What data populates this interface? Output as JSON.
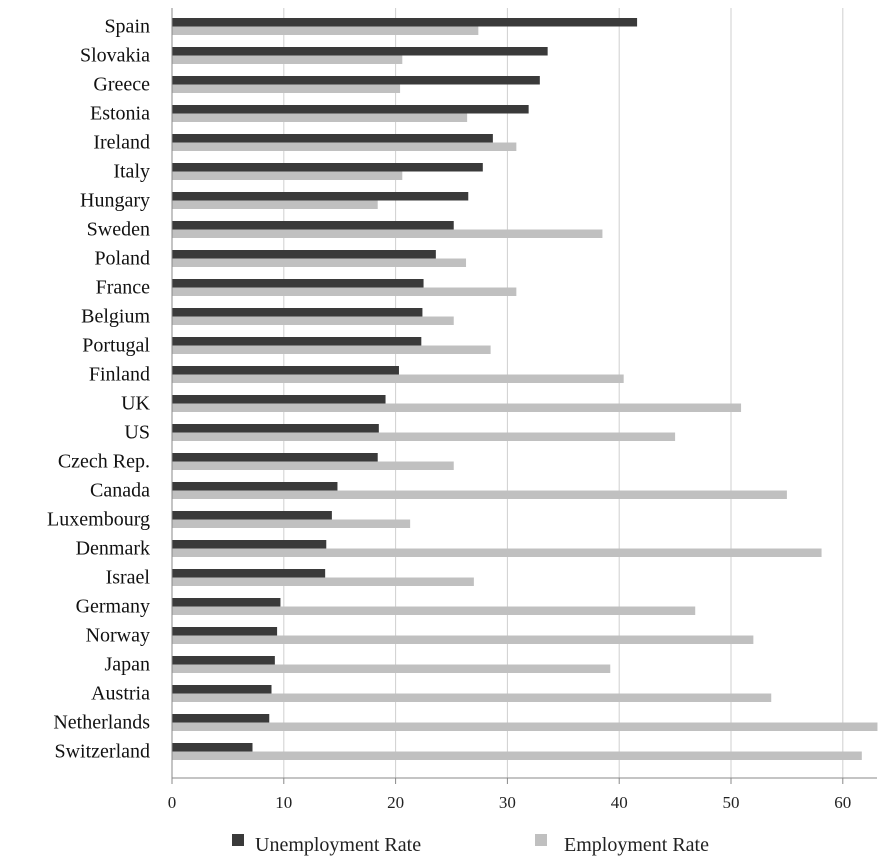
{
  "chart_data": {
    "type": "bar",
    "orientation": "horizontal",
    "categories": [
      "Spain",
      "Slovakia",
      "Greece",
      "Estonia",
      "Ireland",
      "Italy",
      "Hungary",
      "Sweden",
      "Poland",
      "France",
      "Belgium",
      "Portugal",
      "Finland",
      "UK",
      "US",
      "Czech Rep.",
      "Canada",
      "Luxembourg",
      "Denmark",
      "Israel",
      "Germany",
      "Norway",
      "Japan",
      "Austria",
      "Netherlands",
      "Switzerland"
    ],
    "series": [
      {
        "name": "Unemployment Rate",
        "color": "#3a3a3a",
        "values": [
          41.6,
          33.6,
          32.9,
          31.9,
          28.7,
          27.8,
          26.5,
          25.2,
          23.6,
          22.5,
          22.4,
          22.3,
          20.3,
          19.1,
          18.5,
          18.4,
          14.8,
          14.3,
          13.8,
          13.7,
          9.7,
          9.4,
          9.2,
          8.9,
          8.7,
          7.2
        ]
      },
      {
        "name": "Employment Rate",
        "color": "#c0c0c0",
        "values": [
          27.4,
          20.6,
          20.4,
          26.4,
          30.8,
          20.6,
          18.4,
          38.5,
          26.3,
          30.8,
          25.2,
          28.5,
          40.4,
          50.9,
          45.0,
          25.2,
          55.0,
          21.3,
          58.1,
          27.0,
          46.8,
          52.0,
          39.2,
          53.6,
          63.1,
          61.7
        ]
      }
    ],
    "ticks": [
      0,
      10,
      20,
      30,
      40,
      50,
      60
    ],
    "xlim": [
      0,
      63
    ],
    "grid": true,
    "legend_position": "bottom",
    "title": "",
    "xlabel": "",
    "ylabel": ""
  }
}
